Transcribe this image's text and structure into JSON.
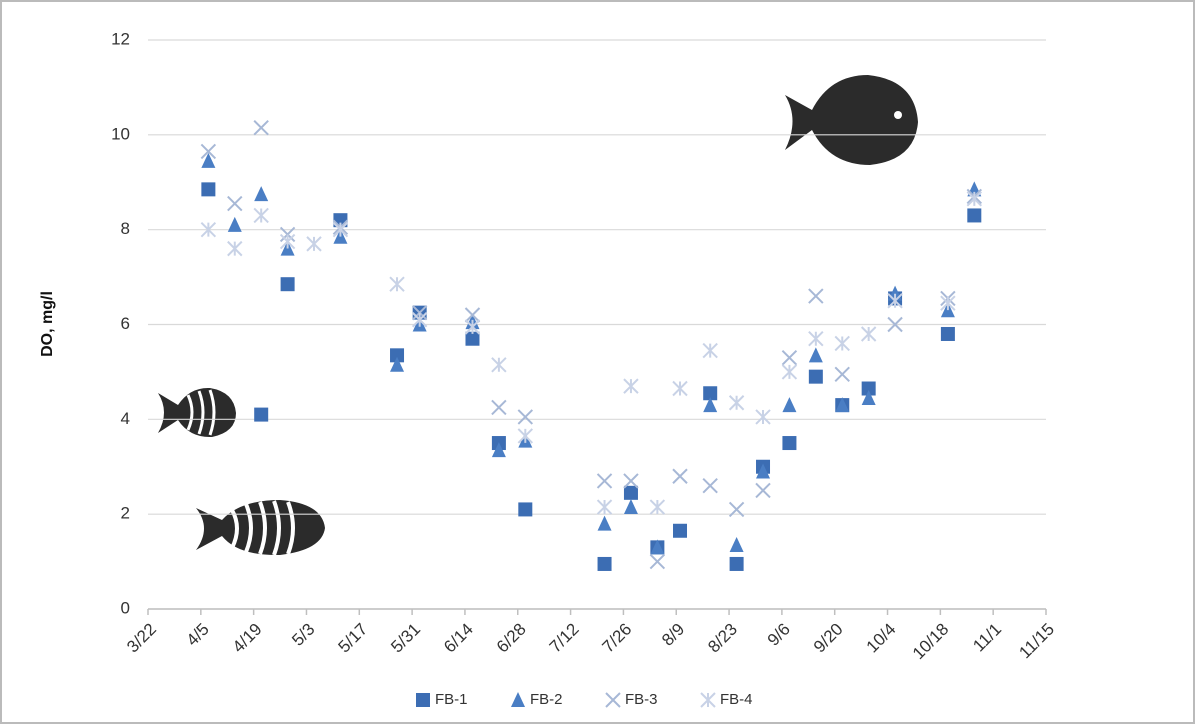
{
  "chart_data": {
    "type": "scatter",
    "y_label": "DO, mg/l",
    "x": [
      16,
      23,
      30,
      37,
      44,
      51,
      66,
      72,
      86,
      93,
      100,
      121,
      128,
      135,
      141,
      149,
      156,
      163,
      170,
      177,
      184,
      191,
      198,
      212,
      219
    ],
    "series": [
      {
        "name": "FB-1",
        "color": "#3c6db3",
        "marker": "square",
        "values": [
          8.85,
          null,
          4.1,
          6.85,
          null,
          8.2,
          5.35,
          6.25,
          5.7,
          3.5,
          2.1,
          0.95,
          2.45,
          1.3,
          1.65,
          4.55,
          0.95,
          3.0,
          3.5,
          4.9,
          4.3,
          4.65,
          6.55,
          5.8,
          8.3
        ]
      },
      {
        "name": "FB-2",
        "color": "#4a7ec4",
        "marker": "triangle",
        "values": [
          9.45,
          8.1,
          8.75,
          7.6,
          null,
          7.85,
          5.15,
          6.0,
          6.05,
          3.35,
          3.55,
          1.8,
          2.15,
          1.3,
          null,
          4.3,
          1.35,
          2.9,
          4.3,
          5.35,
          4.3,
          4.45,
          6.65,
          6.3,
          8.85
        ]
      },
      {
        "name": "FB-3",
        "color": "#a7b8d6",
        "marker": "x",
        "values": [
          9.65,
          8.55,
          10.15,
          7.9,
          null,
          8.05,
          null,
          6.25,
          6.2,
          4.25,
          4.05,
          2.7,
          2.7,
          1.0,
          2.8,
          2.6,
          2.1,
          2.5,
          5.3,
          6.6,
          4.95,
          null,
          6.0,
          6.55,
          8.7
        ]
      },
      {
        "name": "FB-4",
        "color": "#c8d2e6",
        "marker": "asterisk",
        "values": [
          8.0,
          7.6,
          8.3,
          7.75,
          7.7,
          8.0,
          6.85,
          6.1,
          5.95,
          5.15,
          3.65,
          2.15,
          4.7,
          2.15,
          4.65,
          5.45,
          4.35,
          4.05,
          5.0,
          5.7,
          5.6,
          5.8,
          6.5,
          6.45,
          8.65
        ]
      }
    ],
    "xlim": [
      0,
      238
    ],
    "xticks": [
      {
        "value": 0,
        "label": "3/22"
      },
      {
        "value": 14,
        "label": "4/5"
      },
      {
        "value": 28,
        "label": "4/19"
      },
      {
        "value": 42,
        "label": "5/3"
      },
      {
        "value": 56,
        "label": "5/17"
      },
      {
        "value": 70,
        "label": "5/31"
      },
      {
        "value": 84,
        "label": "6/14"
      },
      {
        "value": 98,
        "label": "6/28"
      },
      {
        "value": 112,
        "label": "7/12"
      },
      {
        "value": 126,
        "label": "7/26"
      },
      {
        "value": 140,
        "label": "8/9"
      },
      {
        "value": 154,
        "label": "8/23"
      },
      {
        "value": 168,
        "label": "9/6"
      },
      {
        "value": 182,
        "label": "9/20"
      },
      {
        "value": 196,
        "label": "10/4"
      },
      {
        "value": 210,
        "label": "10/18"
      },
      {
        "value": 224,
        "label": "11/1"
      },
      {
        "value": 238,
        "label": "11/15"
      }
    ],
    "ylim": [
      0,
      12
    ],
    "yticks": [
      0,
      2,
      4,
      6,
      8,
      10,
      12
    ],
    "grid": true,
    "legend": "bottom"
  }
}
